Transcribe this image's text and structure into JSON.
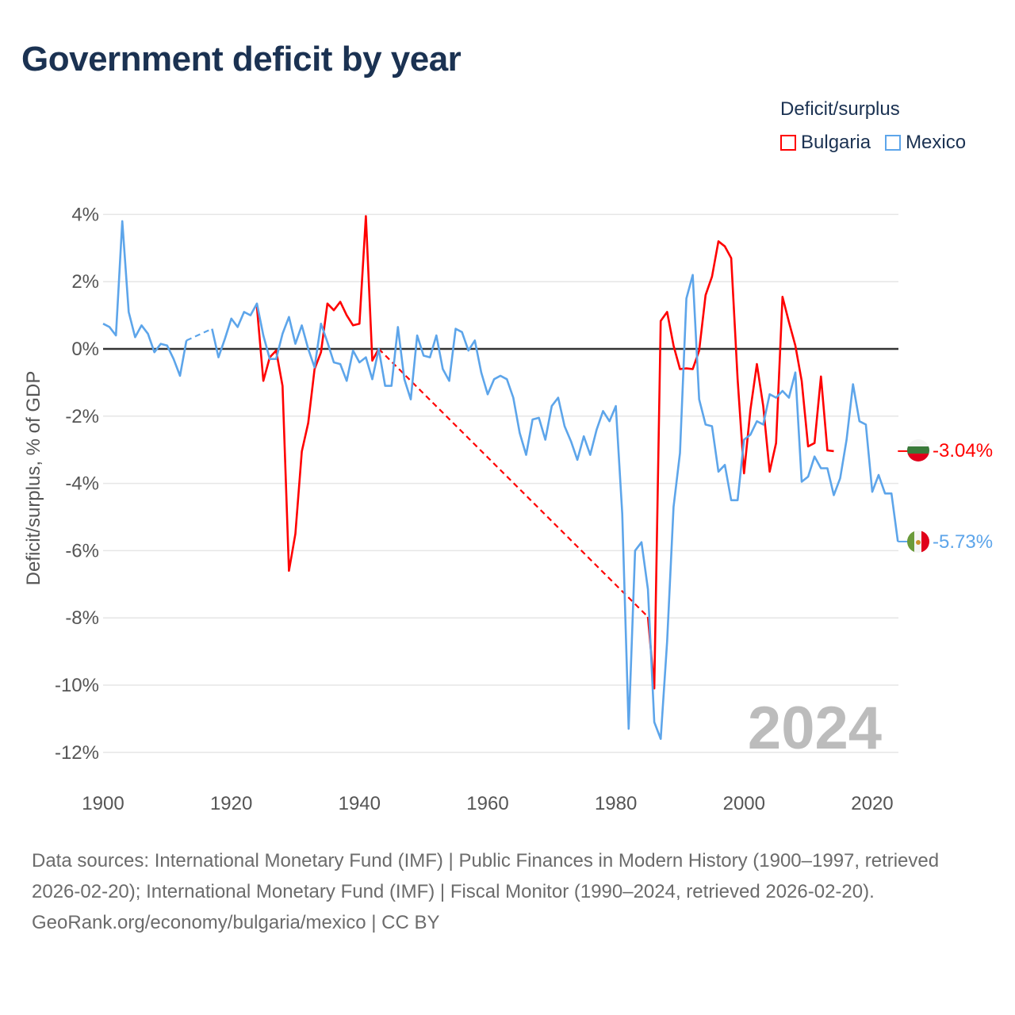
{
  "title": "Government deficit by year",
  "legend": {
    "title": "Deficit/surplus",
    "items": [
      {
        "label": "Bulgaria",
        "color": "#ff0000"
      },
      {
        "label": "Mexico",
        "color": "#5da5ea"
      }
    ]
  },
  "footer": {
    "sources": "Data sources: International Monetary Fund (IMF) | Public Finances in Modern History (1900–1997, retrieved 2026-02-20); International Monetary Fund (IMF) | Fiscal Monitor (1990–2024, retrieved 2026-02-20).",
    "credit": "GeoRank.org/economy/bulgaria/mexico | CC BY"
  },
  "chart_data": {
    "type": "line",
    "title": "Government deficit by year",
    "ylabel": "Deficit/surplus, % of GDP",
    "xlabel": "",
    "xlim": [
      1900,
      2024
    ],
    "ylim": [
      -12.5,
      4.3
    ],
    "yticks": [
      4,
      2,
      0,
      -2,
      -4,
      -6,
      -8,
      -10,
      -12
    ],
    "ytick_labels": [
      "4%",
      "2%",
      "0%",
      "-2%",
      "-4%",
      "-6%",
      "-8%",
      "-10%",
      "-12%"
    ],
    "xticks": [
      1900,
      1920,
      1940,
      1960,
      1980,
      2000,
      2020
    ],
    "xtick_labels": [
      "1900",
      "1920",
      "1940",
      "1960",
      "1980",
      "2000",
      "2020"
    ],
    "grid": true,
    "legend_position": "top-right",
    "current_year_label": "2024",
    "series": [
      {
        "name": "Bulgaria",
        "color": "#ff0000",
        "end_label": "-3.04%",
        "flag": "bulgaria-flag",
        "start_year": 1924,
        "values": [
          1.25,
          -0.95,
          -0.25,
          -0.05,
          -1.1,
          -6.6,
          -5.5,
          -3.05,
          -2.2,
          -0.6,
          -0.1,
          1.35,
          1.15,
          1.4,
          1.0,
          0.7,
          0.75,
          3.95,
          -0.35,
          0.0,
          null,
          null,
          null,
          null,
          null,
          null,
          null,
          null,
          null,
          null,
          null,
          null,
          null,
          null,
          null,
          null,
          null,
          null,
          null,
          null,
          null,
          null,
          null,
          null,
          null,
          null,
          null,
          null,
          null,
          null,
          null,
          null,
          null,
          null,
          null,
          null,
          null,
          null,
          null,
          null,
          null,
          -7.97,
          -10.1,
          0.83,
          1.1,
          0.1,
          -0.6,
          -0.58,
          -0.6,
          -0.05,
          1.6,
          2.15,
          3.2,
          3.05,
          2.7,
          -0.9,
          -3.7,
          -1.8,
          -0.45,
          -1.7,
          -3.65,
          -2.8,
          1.55,
          0.8,
          0.1,
          -0.95,
          -2.9,
          -2.8,
          -0.82,
          -3.02,
          -3.04
        ]
      },
      {
        "name": "Mexico",
        "color": "#5da5ea",
        "end_label": "-5.73%",
        "flag": "mexico-flag",
        "start_year": 1900,
        "values": [
          0.75,
          0.65,
          0.4,
          3.8,
          1.1,
          0.35,
          0.7,
          0.45,
          -0.1,
          0.15,
          0.1,
          -0.3,
          -0.8,
          0.25,
          null,
          null,
          null,
          0.6,
          -0.25,
          0.3,
          0.9,
          0.65,
          1.1,
          1.0,
          1.35,
          0.4,
          -0.3,
          -0.3,
          0.45,
          0.95,
          0.15,
          0.7,
          0.0,
          -0.55,
          0.75,
          0.2,
          -0.4,
          -0.45,
          -0.95,
          -0.05,
          -0.4,
          -0.25,
          -0.9,
          0.0,
          -1.1,
          -1.1,
          0.65,
          -0.9,
          -1.5,
          0.4,
          -0.2,
          -0.25,
          0.4,
          -0.6,
          -0.95,
          0.6,
          0.5,
          -0.05,
          0.25,
          -0.7,
          -1.35,
          -0.9,
          -0.8,
          -0.9,
          -1.45,
          -2.5,
          -3.15,
          -2.1,
          -2.05,
          -2.7,
          -1.7,
          -1.45,
          -2.3,
          -2.75,
          -3.3,
          -2.6,
          -3.15,
          -2.4,
          -1.85,
          -2.15,
          -1.7,
          -4.9,
          -11.3,
          -6.0,
          -5.75,
          -7.15,
          -11.1,
          -11.6,
          -8.7,
          -4.7,
          -3.1,
          1.5,
          2.2,
          -1.5,
          -2.25,
          -2.3,
          -3.65,
          -3.45,
          -4.5,
          -4.5,
          -2.7,
          -2.55,
          -2.15,
          -2.25,
          -1.35,
          -1.45,
          -1.25,
          -1.45,
          -0.7,
          -3.95,
          -3.8,
          -3.2,
          -3.55,
          -3.55,
          -4.35,
          -3.85,
          -2.7,
          -1.05,
          -2.15,
          -2.25,
          -4.25,
          -3.75,
          -4.3,
          -4.3,
          -5.73
        ]
      }
    ]
  }
}
